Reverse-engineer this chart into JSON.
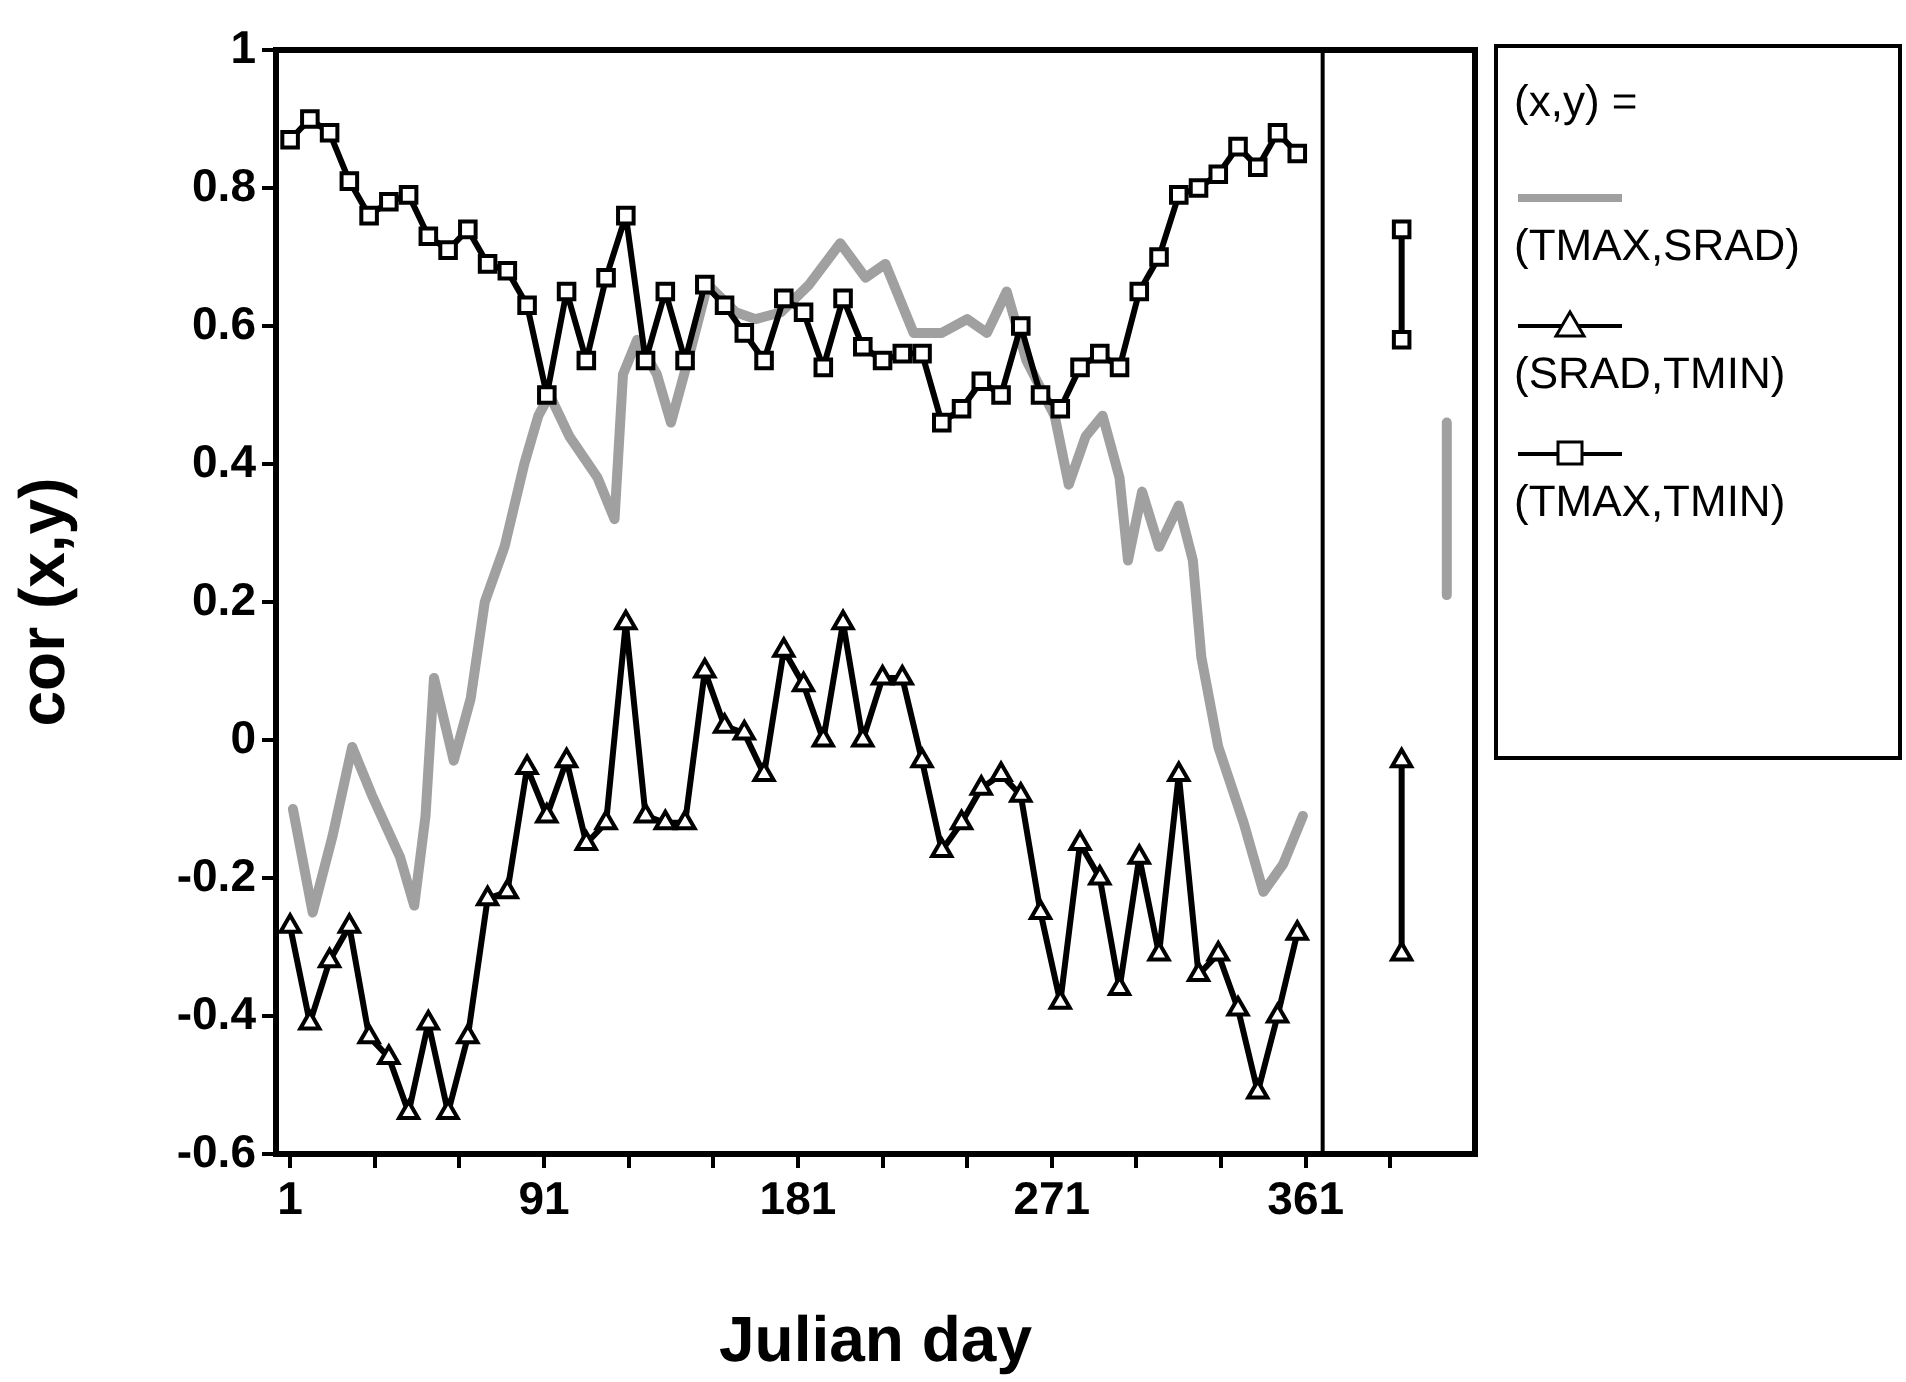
{
  "chart_data": {
    "type": "line",
    "xlabel": "Julian day",
    "ylabel": "cor (x,y)",
    "legend_title": "(x,y) =",
    "legend": "right",
    "grid": false,
    "xlim": [
      -4,
      421
    ],
    "xticks": [
      1,
      {
        "value": 31,
        "label": null
      },
      {
        "value": 61,
        "label": null
      },
      91,
      {
        "value": 121,
        "label": null
      },
      {
        "value": 151,
        "label": null
      },
      181,
      {
        "value": 211,
        "label": null
      },
      {
        "value": 241,
        "label": null
      },
      271,
      {
        "value": 301,
        "label": null
      },
      {
        "value": 331,
        "label": null
      },
      361,
      {
        "value": 391,
        "label": null
      }
    ],
    "ylim": [
      -0.6,
      1
    ],
    "yticks": [
      -0.6,
      -0.4,
      -0.2,
      0,
      0.2,
      0.4,
      0.6,
      0.8,
      1
    ],
    "ref_lines": [
      {
        "axis": "x",
        "value": 367,
        "color": "#000000"
      }
    ],
    "series": [
      {
        "name": "(TMAX,SRAD)",
        "color": "#a0a0a0",
        "marker": "none",
        "x": [
          2,
          9,
          16,
          23,
          30,
          40,
          45,
          49,
          52,
          59,
          65,
          70,
          77,
          84,
          89,
          93,
          100,
          110,
          116,
          119,
          124,
          131,
          136,
          142,
          149,
          159,
          166,
          175,
          185,
          196,
          205,
          212,
          222,
          232,
          241,
          248,
          255,
          262,
          272,
          277,
          283,
          289,
          295,
          298,
          303,
          309,
          316,
          321,
          324,
          330,
          339,
          346,
          353,
          360
        ],
        "values": [
          -0.1,
          -0.25,
          -0.14,
          -0.01,
          -0.08,
          -0.17,
          -0.24,
          -0.11,
          0.09,
          -0.03,
          0.06,
          0.2,
          0.28,
          0.4,
          0.47,
          0.5,
          0.44,
          0.38,
          0.32,
          0.53,
          0.58,
          0.53,
          0.46,
          0.55,
          0.66,
          0.62,
          0.61,
          0.62,
          0.66,
          0.72,
          0.67,
          0.69,
          0.59,
          0.59,
          0.61,
          0.59,
          0.65,
          0.55,
          0.47,
          0.37,
          0.44,
          0.47,
          0.38,
          0.26,
          0.36,
          0.28,
          0.34,
          0.26,
          0.12,
          -0.01,
          -0.12,
          -0.22,
          -0.18,
          -0.11
        ]
      },
      {
        "name": "(SRAD,TMIN)",
        "color": "#000000",
        "marker": "triangle",
        "x": [
          1,
          8,
          15,
          22,
          29,
          36,
          43,
          50,
          57,
          64,
          71,
          78,
          85,
          92,
          99,
          106,
          113,
          120,
          127,
          134,
          141,
          148,
          155,
          162,
          169,
          176,
          183,
          190,
          197,
          204,
          211,
          218,
          225,
          232,
          239,
          246,
          253,
          260,
          267,
          274,
          281,
          288,
          295,
          302,
          309,
          316,
          323,
          330,
          337,
          344,
          351,
          358
        ],
        "values": [
          -0.27,
          -0.41,
          -0.32,
          -0.27,
          -0.43,
          -0.46,
          -0.54,
          -0.41,
          -0.54,
          -0.43,
          -0.23,
          -0.22,
          -0.04,
          -0.11,
          -0.03,
          -0.15,
          -0.12,
          0.17,
          -0.11,
          -0.12,
          -0.12,
          0.1,
          0.02,
          0.01,
          -0.05,
          0.13,
          0.08,
          0.0,
          0.17,
          0.0,
          0.09,
          0.09,
          -0.03,
          -0.16,
          -0.12,
          -0.07,
          -0.05,
          -0.08,
          -0.25,
          -0.38,
          -0.15,
          -0.2,
          -0.36,
          -0.17,
          -0.31,
          -0.05,
          -0.34,
          -0.31,
          -0.39,
          -0.51,
          -0.4,
          -0.28
        ]
      },
      {
        "name": "(TMAX,TMIN)",
        "color": "#000000",
        "marker": "square",
        "x": [
          1,
          8,
          15,
          22,
          29,
          36,
          43,
          50,
          57,
          64,
          71,
          78,
          85,
          92,
          99,
          106,
          113,
          120,
          127,
          134,
          141,
          148,
          155,
          162,
          169,
          176,
          183,
          190,
          197,
          204,
          211,
          218,
          225,
          232,
          239,
          246,
          253,
          260,
          267,
          274,
          281,
          288,
          295,
          302,
          309,
          316,
          323,
          330,
          337,
          344,
          351,
          358
        ],
        "values": [
          0.87,
          0.9,
          0.88,
          0.81,
          0.76,
          0.78,
          0.79,
          0.73,
          0.71,
          0.74,
          0.69,
          0.68,
          0.63,
          0.5,
          0.65,
          0.55,
          0.67,
          0.76,
          0.55,
          0.65,
          0.55,
          0.66,
          0.63,
          0.59,
          0.55,
          0.64,
          0.62,
          0.54,
          0.64,
          0.57,
          0.55,
          0.56,
          0.56,
          0.46,
          0.48,
          0.52,
          0.5,
          0.6,
          0.5,
          0.48,
          0.54,
          0.56,
          0.54,
          0.65,
          0.7,
          0.79,
          0.8,
          0.82,
          0.86,
          0.83,
          0.88,
          0.85
        ]
      },
      {
        "color": "#000000",
        "marker": "square",
        "x": [
          395,
          395
        ],
        "values": [
          0.74,
          0.58
        ]
      },
      {
        "color": "#a0a0a0",
        "marker": "none",
        "x": [
          411,
          411
        ],
        "values": [
          0.46,
          0.21
        ]
      },
      {
        "color": "#000000",
        "marker": "triangle",
        "x": [
          395,
          395
        ],
        "values": [
          -0.03,
          -0.31
        ]
      }
    ]
  }
}
